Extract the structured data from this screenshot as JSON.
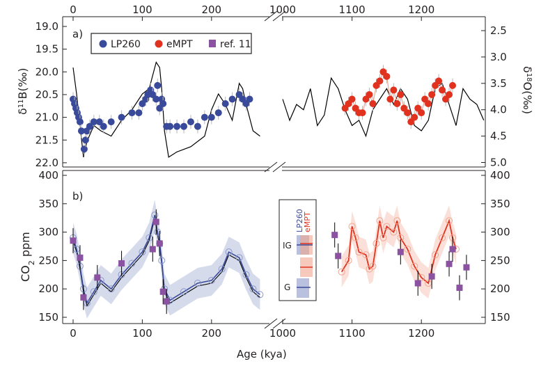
{
  "chart_data": [
    {
      "panel": "a",
      "panel_label": "a)",
      "type": "scatter+line",
      "ylabel_left": "δ11B(‰)",
      "ylabel_right": "δ18O(‰)",
      "ylim_left": [
        22.0,
        19.0
      ],
      "ylim_right": [
        5.0,
        2.5
      ],
      "y_inverted": true,
      "left_ticks": [
        "19.0",
        "19.5",
        "20.0",
        "20.5",
        "21.0",
        "21.5",
        "22.0"
      ],
      "right_ticks": [
        "2.5",
        "3.0",
        "3.5",
        "4.0",
        "4.5",
        "5.0"
      ],
      "top_ticks_left": [
        "0",
        "100",
        "200"
      ],
      "top_ticks_right": [
        "1000",
        "1100",
        "1200"
      ],
      "legend": [
        {
          "label": "LP260",
          "color": "#3a4a9a",
          "marker": "circle"
        },
        {
          "label": "eMPT",
          "color": "#e0321e",
          "marker": "circle"
        },
        {
          "label": "ref. 11",
          "color": "#8a52a0",
          "marker": "square"
        }
      ],
      "series": [
        {
          "name": "LP260",
          "axis": "left",
          "x": [
            0,
            2,
            4,
            6,
            8,
            10,
            12,
            16,
            18,
            20,
            24,
            30,
            38,
            44,
            55,
            70,
            85,
            95,
            100,
            105,
            108,
            112,
            115,
            120,
            122,
            125,
            128,
            130,
            135,
            140,
            150,
            160,
            170,
            180,
            190,
            200,
            210,
            220,
            230,
            240,
            245,
            250,
            255
          ],
          "y": [
            20.6,
            20.7,
            20.8,
            20.9,
            21.0,
            21.1,
            21.3,
            21.7,
            21.5,
            21.3,
            21.2,
            21.1,
            21.1,
            21.2,
            21.1,
            21.0,
            20.9,
            20.9,
            20.7,
            20.6,
            20.5,
            20.4,
            20.5,
            20.6,
            20.3,
            20.8,
            20.6,
            20.7,
            21.2,
            21.2,
            21.2,
            21.2,
            21.1,
            21.2,
            21.0,
            21.0,
            20.9,
            20.7,
            20.6,
            20.5,
            20.6,
            20.7,
            20.6
          ]
        },
        {
          "name": "eMPT",
          "axis": "left",
          "x": [
            1090,
            1095,
            1100,
            1105,
            1110,
            1115,
            1120,
            1125,
            1130,
            1135,
            1140,
            1145,
            1150,
            1155,
            1160,
            1165,
            1170,
            1175,
            1180,
            1185,
            1190,
            1195,
            1200,
            1205,
            1210,
            1215,
            1220,
            1225,
            1230,
            1235,
            1240,
            1245
          ],
          "y": [
            20.8,
            20.7,
            20.6,
            20.8,
            20.9,
            20.9,
            20.6,
            20.5,
            20.7,
            20.3,
            20.2,
            20.0,
            20.1,
            20.6,
            20.4,
            20.7,
            20.5,
            20.8,
            20.9,
            21.1,
            21.0,
            20.8,
            20.9,
            20.6,
            20.7,
            20.5,
            20.3,
            20.2,
            20.4,
            20.6,
            20.5,
            20.3
          ]
        },
        {
          "name": "δ18O stack",
          "axis": "right",
          "color": "#000000",
          "x": [
            0,
            5,
            10,
            15,
            20,
            30,
            40,
            55,
            70,
            85,
            100,
            110,
            120,
            125,
            128,
            132,
            138,
            150,
            170,
            190,
            200,
            210,
            220,
            230,
            240,
            245,
            250,
            260,
            270
          ],
          "y": [
            3.2,
            3.7,
            4.3,
            4.9,
            4.6,
            4.3,
            4.4,
            4.5,
            4.2,
            4.0,
            3.7,
            3.6,
            3.1,
            3.2,
            3.6,
            4.4,
            4.9,
            4.8,
            4.7,
            4.5,
            4.0,
            3.7,
            3.9,
            4.2,
            3.5,
            3.6,
            3.9,
            4.4,
            4.5
          ]
        },
        {
          "name": "δ18O stack (eMPT)",
          "axis": "right",
          "color": "#000000",
          "x": [
            1000,
            1010,
            1020,
            1030,
            1040,
            1050,
            1060,
            1070,
            1080,
            1090,
            1100,
            1110,
            1120,
            1130,
            1140,
            1150,
            1160,
            1170,
            1180,
            1190,
            1200,
            1210,
            1220,
            1230,
            1240,
            1250,
            1260,
            1270,
            1280,
            1290
          ],
          "y": [
            3.8,
            4.2,
            3.9,
            4.0,
            3.6,
            4.3,
            4.1,
            3.4,
            3.6,
            4.0,
            4.3,
            4.2,
            4.5,
            4.0,
            3.8,
            3.6,
            3.9,
            3.6,
            3.8,
            4.3,
            4.4,
            4.2,
            3.6,
            3.5,
            3.9,
            4.3,
            3.6,
            3.8,
            3.9,
            4.2
          ]
        }
      ]
    },
    {
      "panel": "b",
      "panel_label": "b)",
      "type": "scatter+line+band",
      "xlabel": "Age (kya)",
      "ylabel": "CO2 ppm",
      "ylim": [
        150,
        400
      ],
      "left_ticks": [
        "150",
        "200",
        "250",
        "300",
        "350",
        "400"
      ],
      "right_ticks": [
        "150",
        "200",
        "250",
        "300",
        "350",
        "400"
      ],
      "bottom_ticks_left": [
        "0",
        "100",
        "200"
      ],
      "bottom_ticks_right": [
        "1000",
        "1100",
        "1200"
      ],
      "legend_inset": {
        "column_labels": [
          "LP260",
          "eMPT"
        ],
        "rows": [
          "IG",
          "",
          "G"
        ]
      },
      "series": [
        {
          "name": "LP260",
          "color": "#3a4a9a",
          "x": [
            0,
            5,
            10,
            15,
            20,
            30,
            40,
            55,
            70,
            85,
            100,
            110,
            118,
            122,
            125,
            128,
            132,
            140,
            160,
            180,
            200,
            215,
            225,
            240,
            250,
            260,
            270
          ],
          "y": [
            290,
            270,
            240,
            200,
            175,
            195,
            215,
            200,
            225,
            245,
            265,
            290,
            330,
            300,
            280,
            250,
            200,
            180,
            195,
            210,
            215,
            235,
            265,
            255,
            225,
            200,
            190
          ]
        },
        {
          "name": "eMPT",
          "color": "#e0321e",
          "x": [
            1085,
            1095,
            1100,
            1105,
            1110,
            1120,
            1125,
            1130,
            1135,
            1140,
            1145,
            1150,
            1160,
            1165,
            1170,
            1180,
            1190,
            1200,
            1210,
            1220,
            1230,
            1240,
            1245,
            1250
          ],
          "y": [
            230,
            250,
            310,
            290,
            265,
            260,
            235,
            240,
            280,
            320,
            290,
            310,
            300,
            320,
            290,
            270,
            240,
            220,
            210,
            260,
            290,
            320,
            290,
            270
          ]
        },
        {
          "name": "ref. 11",
          "color": "#8a52a0",
          "x": [
            0,
            10,
            15,
            35,
            70,
            115,
            120,
            125,
            130,
            135,
            1075,
            1080,
            1170,
            1195,
            1215,
            1240,
            1245,
            1255,
            1265
          ],
          "y": [
            285,
            255,
            185,
            220,
            245,
            270,
            318,
            280,
            195,
            178,
            295,
            258,
            265,
            210,
            222,
            244,
            270,
            202,
            238
          ]
        }
      ]
    }
  ]
}
